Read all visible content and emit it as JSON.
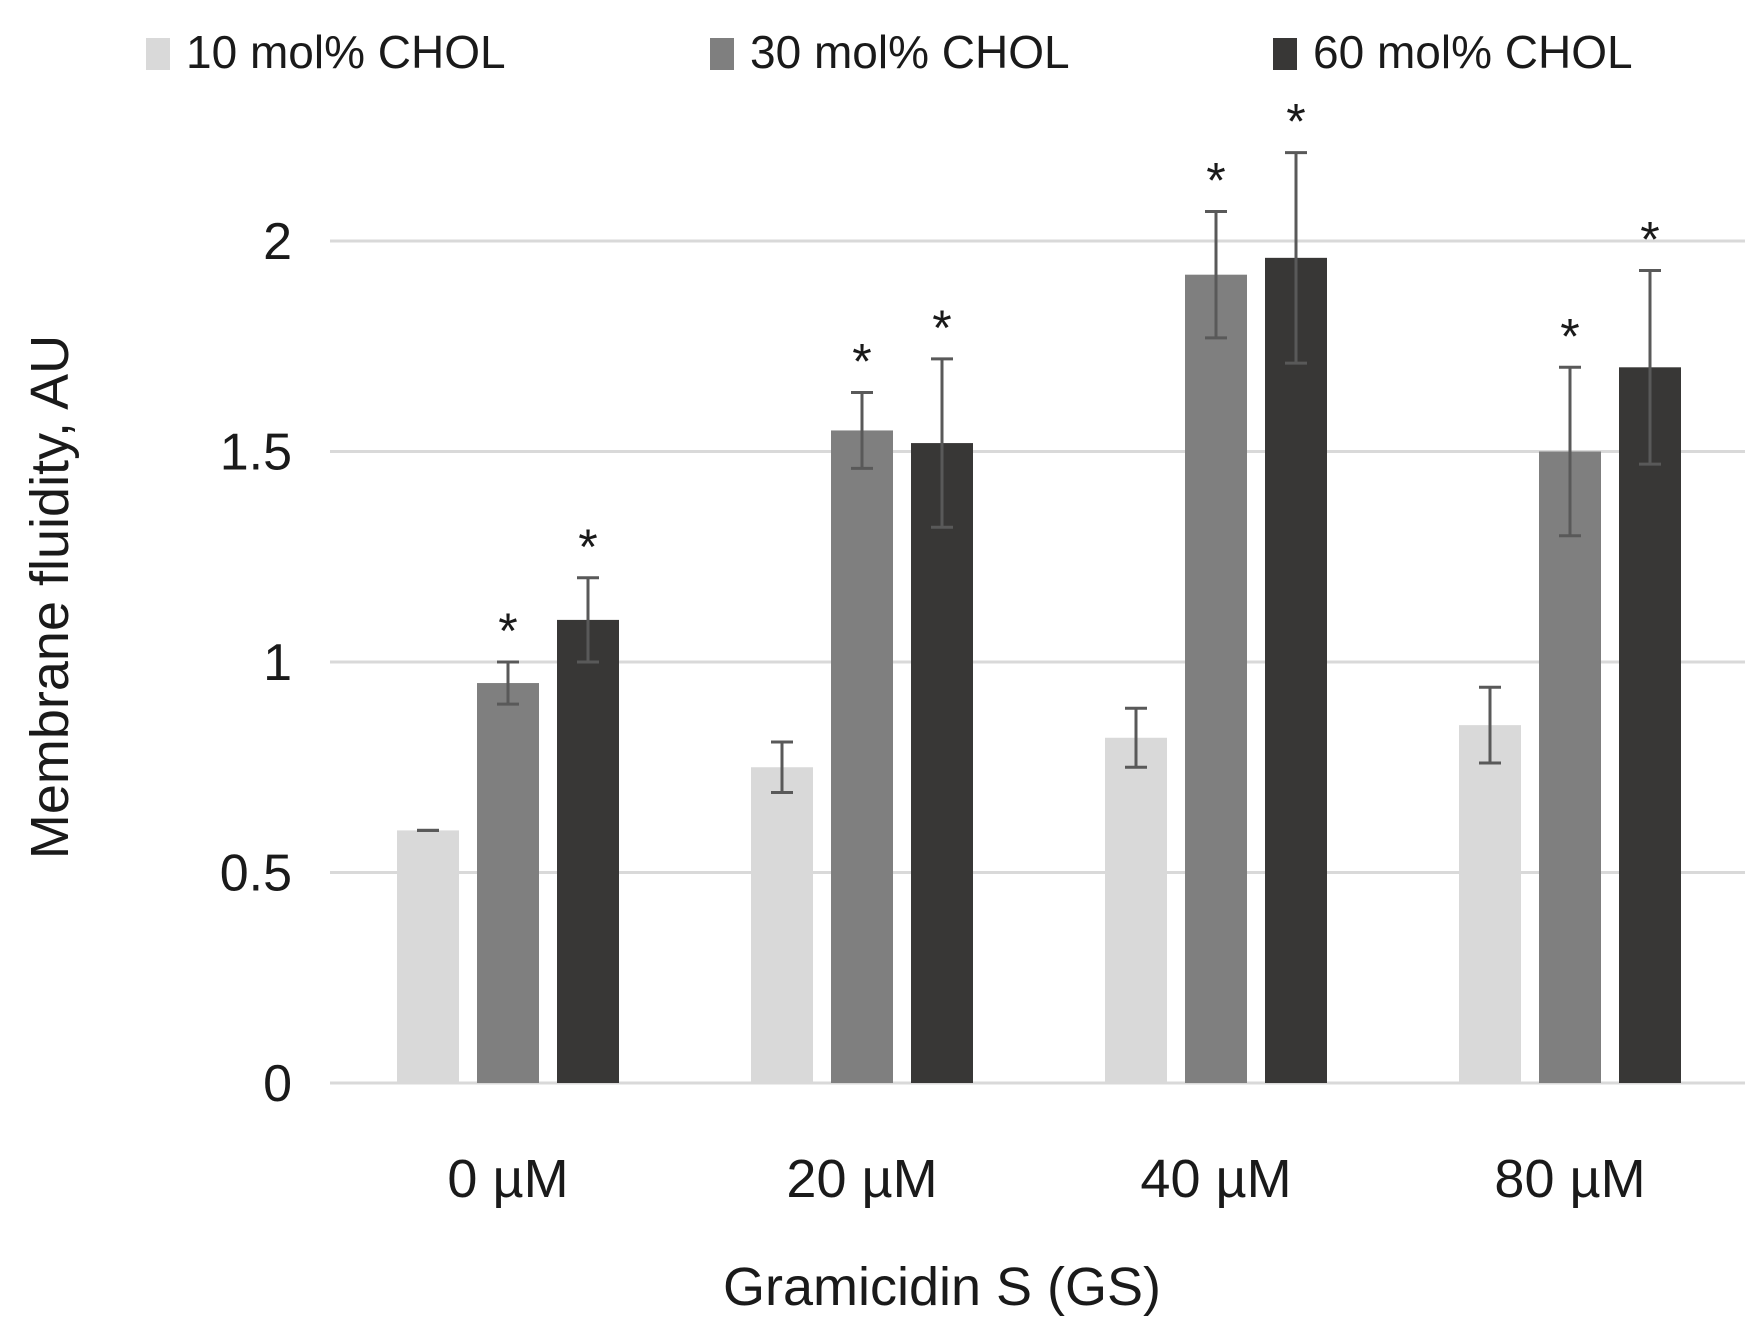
{
  "chart_data": {
    "type": "bar",
    "title": "",
    "xlabel": "Gramicidin S (GS)",
    "ylabel": "Membrane fluidity, AU",
    "categories": [
      "0 µM",
      "20 µM",
      "40 µM",
      "80 µM"
    ],
    "ylim": [
      0,
      2.5
    ],
    "yticks": [
      "0",
      "0.5",
      "1",
      "1.5",
      "2"
    ],
    "ytick_values": [
      0,
      0.5,
      1,
      1.5,
      2
    ],
    "grid": true,
    "legend_position": "top",
    "significance_marker": "*",
    "series": [
      {
        "name": "10 mol% CHOL",
        "color": "#d9d9d9",
        "values": [
          0.6,
          0.75,
          0.82,
          0.85
        ],
        "errors": [
          0.0,
          0.06,
          0.07,
          0.09
        ],
        "significant": [
          false,
          false,
          false,
          false
        ]
      },
      {
        "name": "30 mol% CHOL",
        "color": "#7f7f7f",
        "values": [
          0.95,
          1.55,
          1.92,
          1.5
        ],
        "errors": [
          0.05,
          0.09,
          0.15,
          0.2
        ],
        "significant": [
          true,
          true,
          true,
          true
        ]
      },
      {
        "name": "60 mol% CHOL",
        "color": "#383736",
        "values": [
          1.1,
          1.52,
          1.96,
          1.7
        ],
        "errors": [
          0.1,
          0.2,
          0.25,
          0.23
        ],
        "significant": [
          true,
          true,
          true,
          true
        ]
      }
    ]
  }
}
